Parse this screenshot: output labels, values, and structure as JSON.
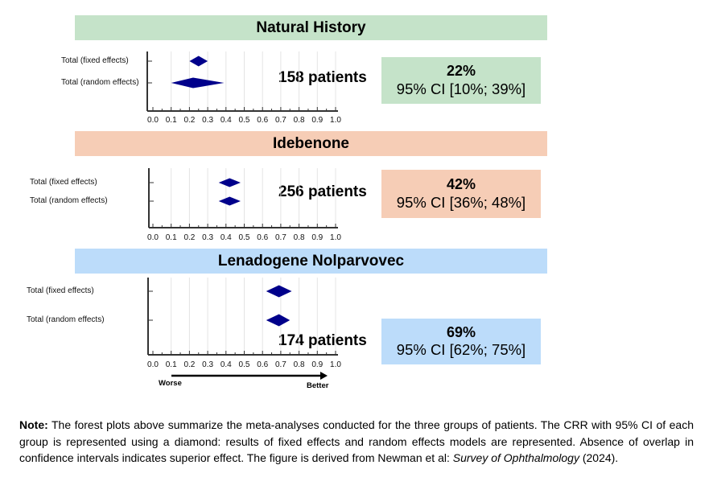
{
  "colors": {
    "diamond": "#00008b",
    "axis": "#333333",
    "gridline": "#e4e4e4"
  },
  "chart_data": {
    "type": "forest",
    "x_range": [
      0.0,
      1.0
    ],
    "x_ticks": [
      "0.0",
      "0.1",
      "0.2",
      "0.3",
      "0.4",
      "0.5",
      "0.6",
      "0.7",
      "0.8",
      "0.9",
      "1.0"
    ],
    "x_direction": {
      "low_label": "Worse",
      "high_label": "Better"
    },
    "groups": [
      {
        "title": "Natural History",
        "color": "#c5e3c9",
        "patients_label": "158 patients",
        "summary_pct": "22%",
        "summary_ci": "95% CI [10%; 39%]",
        "rows": [
          {
            "label": "Total (fixed effects)",
            "estimate": 0.25,
            "lower": 0.2,
            "upper": 0.3
          },
          {
            "label": "Total (random effects)",
            "estimate": 0.22,
            "lower": 0.1,
            "upper": 0.39
          }
        ]
      },
      {
        "title": "Idebenone",
        "color": "#f6cdb6",
        "patients_label": "256 patients",
        "summary_pct": "42%",
        "summary_ci": "95% CI [36%; 48%]",
        "rows": [
          {
            "label": "Total (fixed effects)",
            "estimate": 0.42,
            "lower": 0.36,
            "upper": 0.48
          },
          {
            "label": "Total (random effects)",
            "estimate": 0.42,
            "lower": 0.36,
            "upper": 0.48
          }
        ]
      },
      {
        "title": "Lenadogene Nolparvovec",
        "color": "#bcdcfa",
        "patients_label": "174 patients",
        "summary_pct": "69%",
        "summary_ci": "95% CI [62%; 75%]",
        "rows": [
          {
            "label": "Total (fixed effects)",
            "estimate": 0.69,
            "lower": 0.62,
            "upper": 0.76
          },
          {
            "label": "Total (random effects)",
            "estimate": 0.69,
            "lower": 0.62,
            "upper": 0.75
          }
        ]
      }
    ]
  },
  "note": {
    "lead": "Note:",
    "text1": " The forest plots above summarize the meta-analyses conducted for the three groups of patients. The CRR with 95% CI of each group is represented using a diamond: results of fixed effects and random effects models are represented. Absence of overlap in confidence intervals indicates superior effect. The figure is derived from Newman et al: ",
    "journal": "Survey of Ophthalmology",
    "text2": " (2024)."
  }
}
